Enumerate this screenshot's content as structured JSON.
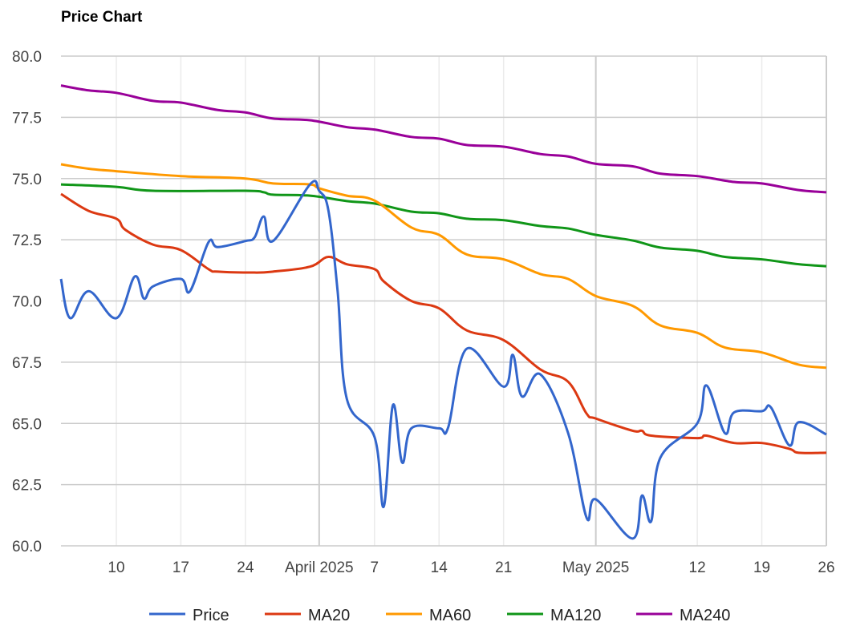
{
  "chart_data": {
    "type": "line",
    "title": "Price Chart",
    "xlabel": "",
    "ylabel": "",
    "ylim": [
      60,
      80
    ],
    "xlim": [
      "2025-03-04",
      "2025-05-26"
    ],
    "grid": true,
    "legend_position": "bottom",
    "y_ticks": [
      "60.0",
      "62.5",
      "65.0",
      "67.5",
      "70.0",
      "72.5",
      "75.0",
      "77.5",
      "80.0"
    ],
    "x_ticks": [
      {
        "date": "2025-03-10",
        "label": "10",
        "major": false
      },
      {
        "date": "2025-03-17",
        "label": "17",
        "major": false
      },
      {
        "date": "2025-03-24",
        "label": "24",
        "major": false
      },
      {
        "date": "2025-04-01",
        "label": "April 2025",
        "major": true
      },
      {
        "date": "2025-04-07",
        "label": "7",
        "major": false
      },
      {
        "date": "2025-04-14",
        "label": "14",
        "major": false
      },
      {
        "date": "2025-04-21",
        "label": "21",
        "major": false
      },
      {
        "date": "2025-05-01",
        "label": "May 2025",
        "major": true
      },
      {
        "date": "2025-05-12",
        "label": "12",
        "major": false
      },
      {
        "date": "2025-05-19",
        "label": "19",
        "major": false
      },
      {
        "date": "2025-05-26",
        "label": "26",
        "major": false
      }
    ],
    "series": [
      {
        "name": "Price",
        "color": "#3366cc",
        "points": [
          [
            "2025-03-04",
            70.9
          ],
          [
            "2025-03-05",
            69.3
          ],
          [
            "2025-03-07",
            70.4
          ],
          [
            "2025-03-10",
            69.3
          ],
          [
            "2025-03-12",
            71.0
          ],
          [
            "2025-03-13",
            70.1
          ],
          [
            "2025-03-14",
            70.6
          ],
          [
            "2025-03-17",
            70.9
          ],
          [
            "2025-03-18",
            70.4
          ],
          [
            "2025-03-20",
            72.4
          ],
          [
            "2025-03-21",
            72.2
          ],
          [
            "2025-03-24",
            72.45
          ],
          [
            "2025-03-25",
            72.6
          ],
          [
            "2025-03-26",
            73.45
          ],
          [
            "2025-03-27",
            72.45
          ],
          [
            "2025-03-31",
            74.76
          ],
          [
            "2025-04-01",
            74.5
          ],
          [
            "2025-04-02",
            73.7
          ],
          [
            "2025-04-03",
            70.4
          ],
          [
            "2025-04-04",
            66.0
          ],
          [
            "2025-04-07",
            64.45
          ],
          [
            "2025-04-08",
            61.6
          ],
          [
            "2025-04-09",
            65.75
          ],
          [
            "2025-04-10",
            63.4
          ],
          [
            "2025-04-11",
            64.8
          ],
          [
            "2025-04-14",
            64.8
          ],
          [
            "2025-04-15",
            64.85
          ],
          [
            "2025-04-17",
            68.05
          ],
          [
            "2025-04-21",
            66.5
          ],
          [
            "2025-04-22",
            67.8
          ],
          [
            "2025-04-23",
            66.1
          ],
          [
            "2025-04-25",
            67.0
          ],
          [
            "2025-04-28",
            64.6
          ],
          [
            "2025-04-30",
            61.15
          ],
          [
            "2025-05-01",
            61.9
          ],
          [
            "2025-05-05",
            60.3
          ],
          [
            "2025-05-06",
            62.05
          ],
          [
            "2025-05-07",
            61.0
          ],
          [
            "2025-05-08",
            63.6
          ],
          [
            "2025-05-12",
            65.0
          ],
          [
            "2025-05-13",
            66.55
          ],
          [
            "2025-05-15",
            64.6
          ],
          [
            "2025-05-16",
            65.45
          ],
          [
            "2025-05-19",
            65.5
          ],
          [
            "2025-05-20",
            65.65
          ],
          [
            "2025-05-22",
            64.1
          ],
          [
            "2025-05-23",
            65.05
          ],
          [
            "2025-05-26",
            64.55
          ]
        ]
      },
      {
        "name": "MA20",
        "color": "#dc3912",
        "points": [
          [
            "2025-03-04",
            74.37
          ],
          [
            "2025-03-07",
            73.68
          ],
          [
            "2025-03-10",
            73.36
          ],
          [
            "2025-03-11",
            72.9
          ],
          [
            "2025-03-14",
            72.3
          ],
          [
            "2025-03-17",
            72.08
          ],
          [
            "2025-03-20",
            71.3
          ],
          [
            "2025-03-21",
            71.2
          ],
          [
            "2025-03-25",
            71.16
          ],
          [
            "2025-03-27",
            71.2
          ],
          [
            "2025-03-31",
            71.4
          ],
          [
            "2025-04-02",
            71.8
          ],
          [
            "2025-04-04",
            71.5
          ],
          [
            "2025-04-07",
            71.3
          ],
          [
            "2025-04-08",
            70.8
          ],
          [
            "2025-04-11",
            70.0
          ],
          [
            "2025-04-14",
            69.7
          ],
          [
            "2025-04-17",
            68.8
          ],
          [
            "2025-04-21",
            68.4
          ],
          [
            "2025-04-25",
            67.2
          ],
          [
            "2025-04-28",
            66.7
          ],
          [
            "2025-04-30",
            65.4
          ],
          [
            "2025-05-01",
            65.2
          ],
          [
            "2025-05-05",
            64.7
          ],
          [
            "2025-05-06",
            64.7
          ],
          [
            "2025-05-07",
            64.5
          ],
          [
            "2025-05-12",
            64.4
          ],
          [
            "2025-05-13",
            64.5
          ],
          [
            "2025-05-16",
            64.2
          ],
          [
            "2025-05-19",
            64.2
          ],
          [
            "2025-05-22",
            63.96
          ],
          [
            "2025-05-23",
            63.8
          ],
          [
            "2025-05-26",
            63.8
          ]
        ]
      },
      {
        "name": "MA60",
        "color": "#ff9900",
        "points": [
          [
            "2025-03-04",
            75.58
          ],
          [
            "2025-03-07",
            75.4
          ],
          [
            "2025-03-10",
            75.3
          ],
          [
            "2025-03-17",
            75.1
          ],
          [
            "2025-03-24",
            75.0
          ],
          [
            "2025-03-27",
            74.8
          ],
          [
            "2025-03-31",
            74.76
          ],
          [
            "2025-04-01",
            74.6
          ],
          [
            "2025-04-04",
            74.3
          ],
          [
            "2025-04-07",
            74.1
          ],
          [
            "2025-04-11",
            73.0
          ],
          [
            "2025-04-14",
            72.7
          ],
          [
            "2025-04-17",
            71.9
          ],
          [
            "2025-04-21",
            71.7
          ],
          [
            "2025-04-25",
            71.1
          ],
          [
            "2025-04-28",
            70.9
          ],
          [
            "2025-05-01",
            70.2
          ],
          [
            "2025-05-05",
            69.8
          ],
          [
            "2025-05-08",
            69.0
          ],
          [
            "2025-05-12",
            68.7
          ],
          [
            "2025-05-15",
            68.1
          ],
          [
            "2025-05-19",
            67.9
          ],
          [
            "2025-05-23",
            67.4
          ],
          [
            "2025-05-26",
            67.27
          ]
        ]
      },
      {
        "name": "MA120",
        "color": "#109618",
        "points": [
          [
            "2025-03-04",
            74.76
          ],
          [
            "2025-03-10",
            74.66
          ],
          [
            "2025-03-14",
            74.5
          ],
          [
            "2025-03-24",
            74.5
          ],
          [
            "2025-03-26",
            74.44
          ],
          [
            "2025-03-27",
            74.34
          ],
          [
            "2025-03-31",
            74.3
          ],
          [
            "2025-04-04",
            74.08
          ],
          [
            "2025-04-07",
            73.98
          ],
          [
            "2025-04-11",
            73.65
          ],
          [
            "2025-04-14",
            73.58
          ],
          [
            "2025-04-17",
            73.36
          ],
          [
            "2025-04-21",
            73.3
          ],
          [
            "2025-04-25",
            73.06
          ],
          [
            "2025-04-28",
            72.96
          ],
          [
            "2025-05-01",
            72.7
          ],
          [
            "2025-05-05",
            72.47
          ],
          [
            "2025-05-08",
            72.18
          ],
          [
            "2025-05-12",
            72.05
          ],
          [
            "2025-05-15",
            71.8
          ],
          [
            "2025-05-19",
            71.7
          ],
          [
            "2025-05-23",
            71.5
          ],
          [
            "2025-05-26",
            71.42
          ]
        ]
      },
      {
        "name": "MA240",
        "color": "#990099",
        "points": [
          [
            "2025-03-04",
            78.8
          ],
          [
            "2025-03-07",
            78.6
          ],
          [
            "2025-03-10",
            78.5
          ],
          [
            "2025-03-14",
            78.17
          ],
          [
            "2025-03-17",
            78.1
          ],
          [
            "2025-03-21",
            77.8
          ],
          [
            "2025-03-24",
            77.7
          ],
          [
            "2025-03-27",
            77.45
          ],
          [
            "2025-03-31",
            77.38
          ],
          [
            "2025-04-04",
            77.1
          ],
          [
            "2025-04-07",
            77.0
          ],
          [
            "2025-04-11",
            76.7
          ],
          [
            "2025-04-14",
            76.63
          ],
          [
            "2025-04-17",
            76.37
          ],
          [
            "2025-04-21",
            76.3
          ],
          [
            "2025-04-25",
            76.0
          ],
          [
            "2025-04-28",
            75.9
          ],
          [
            "2025-05-01",
            75.6
          ],
          [
            "2025-05-05",
            75.5
          ],
          [
            "2025-05-08",
            75.2
          ],
          [
            "2025-05-12",
            75.1
          ],
          [
            "2025-05-16",
            74.86
          ],
          [
            "2025-05-19",
            74.8
          ],
          [
            "2025-05-23",
            74.53
          ],
          [
            "2025-05-26",
            74.44
          ]
        ]
      }
    ]
  }
}
